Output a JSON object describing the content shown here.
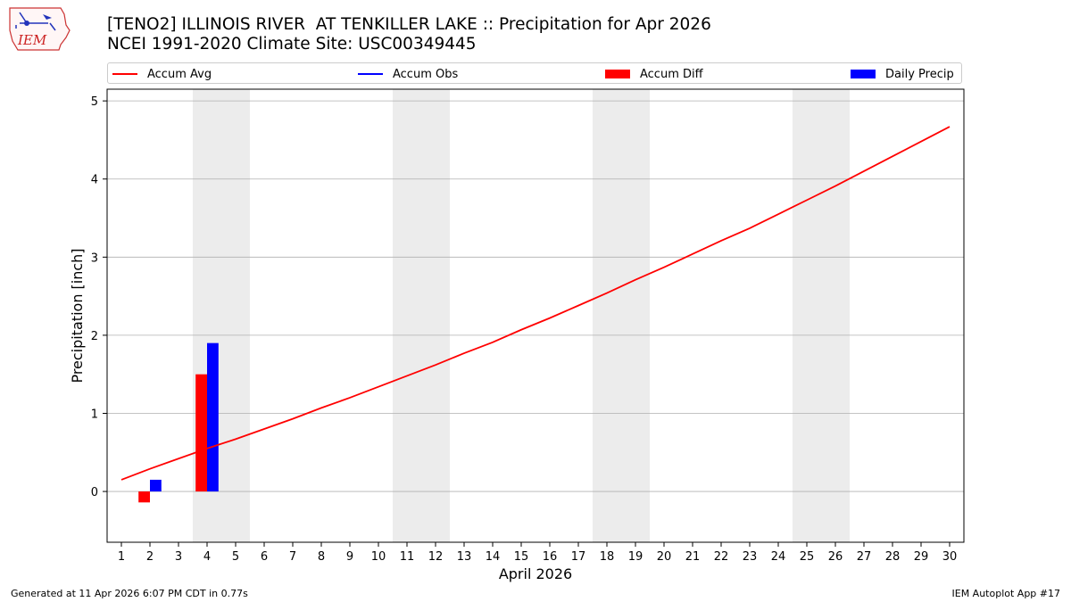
{
  "header": {
    "title_line1": "[TENO2] ILLINOIS RIVER  AT TENKILLER LAKE :: Precipitation for Apr 2026",
    "title_line2": "NCEI 1991-2020 Climate Site: USC00349445",
    "logo_text": "IEM"
  },
  "legend": {
    "accum_avg": "Accum Avg",
    "accum_obs": "Accum Obs",
    "accum_diff": "Accum Diff",
    "daily_precip": "Daily Precip"
  },
  "footer": {
    "generated": "Generated at 11 Apr 2026 6:07 PM CDT in 0.77s",
    "app": "IEM Autoplot App #17"
  },
  "colors": {
    "avg": "#ff0000",
    "obs": "#0000ff",
    "diff": "#ff0000",
    "daily": "#0000ff",
    "weekend_shade": "#ececec",
    "grid": "#b0b0b0"
  },
  "chart_data": {
    "type": "bar",
    "xlabel": "April 2026",
    "ylabel": "Precipitation [inch]",
    "xlim": [
      0.5,
      30.5
    ],
    "ylim": [
      -0.65,
      5.15
    ],
    "yticks": [
      0,
      1,
      2,
      3,
      4,
      5
    ],
    "xticks": [
      1,
      2,
      3,
      4,
      5,
      6,
      7,
      8,
      9,
      10,
      11,
      12,
      13,
      14,
      15,
      16,
      17,
      18,
      19,
      20,
      21,
      22,
      23,
      24,
      25,
      26,
      27,
      28,
      29,
      30
    ],
    "grid": "y",
    "legend_position": "top",
    "weekends": [
      [
        4,
        5
      ],
      [
        11,
        12
      ],
      [
        18,
        19
      ],
      [
        25,
        26
      ]
    ],
    "series": [
      {
        "name": "Accum Avg",
        "kind": "line",
        "x": [
          1,
          2,
          3,
          4,
          5,
          6,
          7,
          8,
          9,
          10,
          11,
          12,
          13,
          14,
          15,
          16,
          17,
          18,
          19,
          20,
          21,
          22,
          23,
          24,
          25,
          26,
          27,
          28,
          29,
          30
        ],
        "values": [
          0.15,
          0.29,
          0.42,
          0.55,
          0.67,
          0.8,
          0.93,
          1.07,
          1.2,
          1.34,
          1.48,
          1.62,
          1.77,
          1.91,
          2.07,
          2.22,
          2.38,
          2.54,
          2.71,
          2.87,
          3.04,
          3.21,
          3.37,
          3.55,
          3.73,
          3.91,
          4.1,
          4.29,
          4.48,
          4.67
        ]
      },
      {
        "name": "Accum Obs",
        "kind": "line",
        "x": [],
        "values": []
      },
      {
        "name": "Accum Diff",
        "kind": "bar",
        "x": [
          2,
          4
        ],
        "values": [
          -0.14,
          1.5
        ]
      },
      {
        "name": "Daily Precip",
        "kind": "bar",
        "x": [
          2,
          4
        ],
        "values": [
          0.15,
          1.9
        ]
      }
    ]
  }
}
